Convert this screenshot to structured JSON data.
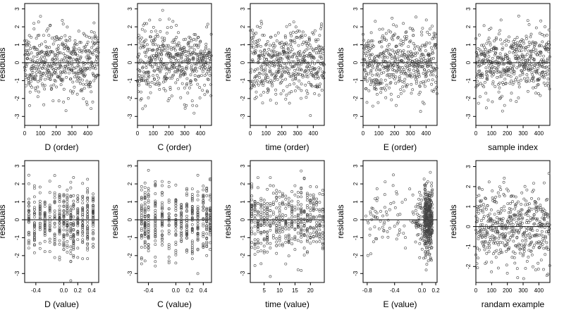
{
  "colors": {
    "axis": "#000000",
    "points": "#444444",
    "zero_line": "#000000",
    "background": "#ffffff"
  },
  "chart_data": [
    {
      "type": "scatter",
      "xlabel": "D (order)",
      "ylabel": "residuals",
      "x_ticks": [
        "0",
        "100",
        "200",
        "300",
        "400"
      ],
      "xlim": [
        0,
        470
      ],
      "ylim": [
        -3.5,
        3.3
      ],
      "y_ticks": [
        "-3",
        "-2",
        "-1",
        "0",
        "1",
        "2",
        "3"
      ],
      "zero_line": true,
      "n": 480,
      "seed": 11,
      "mode": "index"
    },
    {
      "type": "scatter",
      "xlabel": "C (order)",
      "ylabel": "residuals",
      "x_ticks": [
        "0",
        "100",
        "200",
        "300",
        "400"
      ],
      "xlim": [
        0,
        470
      ],
      "ylim": [
        -3.5,
        3.3
      ],
      "y_ticks": [
        "-3",
        "-2",
        "-1",
        "0",
        "1",
        "2",
        "3"
      ],
      "zero_line": true,
      "n": 480,
      "seed": 23,
      "mode": "index"
    },
    {
      "type": "scatter",
      "xlabel": "time (order)",
      "ylabel": "residuals",
      "x_ticks": [
        "0",
        "100",
        "200",
        "300",
        "400"
      ],
      "xlim": [
        0,
        470
      ],
      "ylim": [
        -3.5,
        3.3
      ],
      "y_ticks": [
        "-3",
        "-2",
        "-1",
        "0",
        "1",
        "2",
        "3"
      ],
      "zero_line": true,
      "n": 480,
      "seed": 37,
      "mode": "index"
    },
    {
      "type": "scatter",
      "xlabel": "E (order)",
      "ylabel": "residuals",
      "x_ticks": [
        "0",
        "100",
        "200",
        "300",
        "400"
      ],
      "xlim": [
        0,
        470
      ],
      "ylim": [
        -3.5,
        3.3
      ],
      "y_ticks": [
        "-3",
        "-2",
        "-1",
        "0",
        "1",
        "2",
        "3"
      ],
      "zero_line": true,
      "n": 480,
      "seed": 41,
      "mode": "index"
    },
    {
      "type": "scatter",
      "xlabel": "sample index",
      "ylabel": "residuals",
      "x_ticks": [
        "0",
        "100",
        "200",
        "300",
        "400"
      ],
      "xlim": [
        0,
        470
      ],
      "ylim": [
        -3.5,
        3.3
      ],
      "y_ticks": [
        "-3",
        "-2",
        "-1",
        "0",
        "1",
        "2",
        "3"
      ],
      "zero_line": true,
      "n": 480,
      "seed": 53,
      "mode": "index"
    },
    {
      "type": "scatter",
      "xlabel": "D (value)",
      "ylabel": "residuals",
      "x_ticks": [
        "-0.4",
        "0.0",
        "0.2",
        "0.4"
      ],
      "x_tick_values": [
        -0.4,
        0.0,
        0.2,
        0.4
      ],
      "xlim": [
        -0.56,
        0.5
      ],
      "ylim": [
        -3.5,
        3.3
      ],
      "y_ticks": [
        "-3",
        "-2",
        "-1",
        "0",
        "1",
        "2",
        "3"
      ],
      "zero_line": true,
      "n": 480,
      "seed": 61,
      "mode": "discrete",
      "levels": [
        -0.5,
        -0.42,
        -0.34,
        -0.27,
        -0.2,
        -0.13,
        -0.06,
        0.0,
        0.05,
        0.1,
        0.14,
        0.2,
        0.27,
        0.34,
        0.42
      ]
    },
    {
      "type": "scatter",
      "xlabel": "C (value)",
      "ylabel": "residuals",
      "x_ticks": [
        "-0.4",
        "0.0",
        "0.2",
        "0.4"
      ],
      "x_tick_values": [
        -0.4,
        0.0,
        0.2,
        0.4
      ],
      "xlim": [
        -0.56,
        0.52
      ],
      "ylim": [
        -3.5,
        3.3
      ],
      "y_ticks": [
        "-3",
        "-2",
        "-1",
        "0",
        "1",
        "2",
        "3"
      ],
      "zero_line": true,
      "n": 480,
      "seed": 71,
      "mode": "discrete",
      "levels": [
        -0.5,
        -0.45,
        -0.4,
        -0.3,
        -0.2,
        -0.1,
        0.0,
        0.08,
        0.16,
        0.24,
        0.32,
        0.4,
        0.45,
        0.5
      ]
    },
    {
      "type": "scatter",
      "xlabel": "time (value)",
      "ylabel": "residuals",
      "x_ticks": [
        "5",
        "10",
        "15",
        "20"
      ],
      "x_tick_values": [
        5,
        10,
        15,
        20
      ],
      "xlim": [
        0.5,
        24.5
      ],
      "ylim": [
        -3.5,
        3.3
      ],
      "y_ticks": [
        "-3",
        "-2",
        "-1",
        "0",
        "1",
        "2",
        "3"
      ],
      "zero_line": true,
      "n": 480,
      "seed": 83,
      "mode": "discrete",
      "levels": [
        1,
        2,
        3,
        4,
        5,
        6,
        7,
        8,
        9,
        10,
        11,
        12,
        13,
        14,
        15,
        16,
        17,
        18,
        19,
        20,
        21,
        22,
        23,
        24
      ]
    },
    {
      "type": "scatter",
      "xlabel": "E (value)",
      "ylabel": "residuals",
      "x_ticks": [
        "-0.8",
        "-0.4",
        "0.0",
        "0.2"
      ],
      "x_tick_values": [
        -0.8,
        -0.4,
        0.0,
        0.2
      ],
      "xlim": [
        -0.86,
        0.22
      ],
      "ylim": [
        -3.5,
        3.3
      ],
      "y_ticks": [
        "-3",
        "-2",
        "-1",
        "0",
        "1",
        "2",
        "3"
      ],
      "zero_line": true,
      "n": 480,
      "seed": 97,
      "mode": "skewed"
    },
    {
      "type": "scatter",
      "xlabel": "randam example",
      "ylabel": "residuals",
      "x_ticks": [
        "0",
        "100",
        "200",
        "300",
        "400"
      ],
      "xlim": [
        0,
        470
      ],
      "ylim": [
        -2.8,
        3.3
      ],
      "y_ticks": [
        "-2",
        "-1",
        "0",
        "1",
        "2",
        "3"
      ],
      "zero_line": true,
      "n": 480,
      "seed": 101,
      "mode": "index"
    }
  ]
}
